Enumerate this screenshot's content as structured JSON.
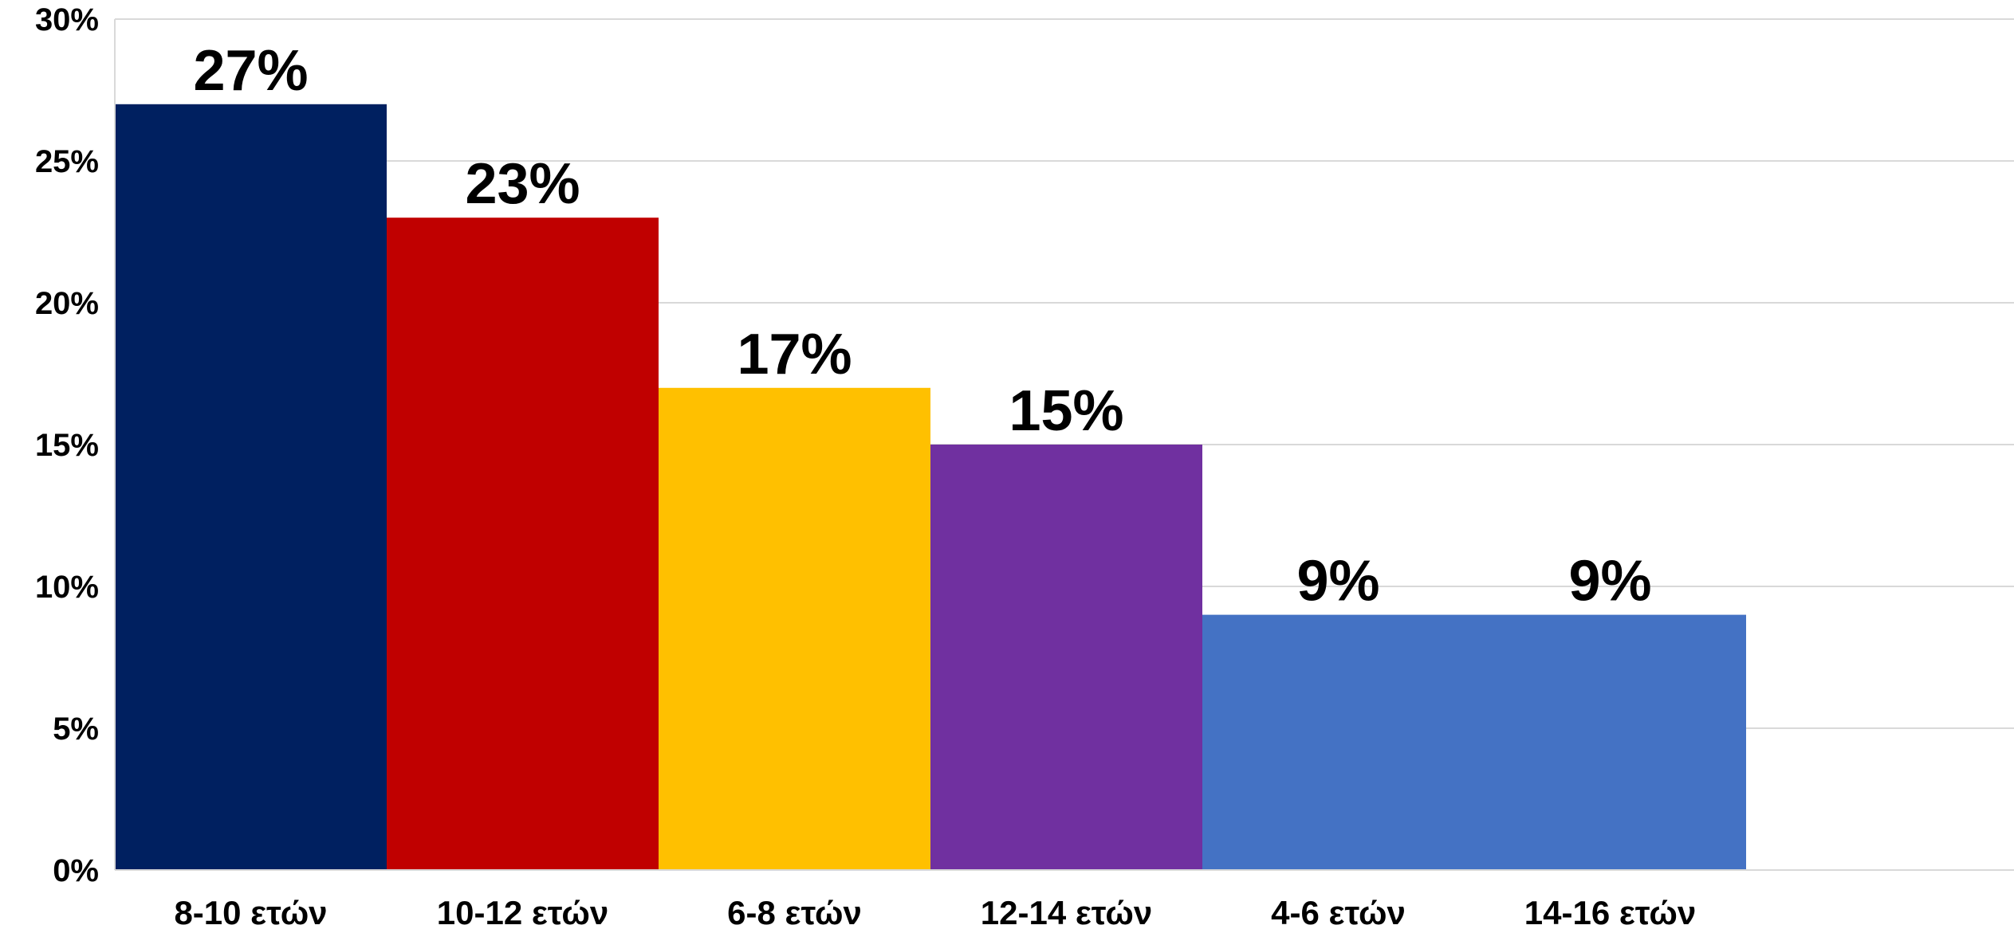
{
  "chart_data": {
    "type": "bar",
    "categories": [
      "8-10 ετών",
      "10-12 ετών",
      "6-8 ετών",
      "12-14 ετών",
      "4-6 ετών",
      "14-16 ετών"
    ],
    "values": [
      27,
      23,
      17,
      15,
      9,
      9
    ],
    "data_labels": [
      "27%",
      "23%",
      "17%",
      "15%",
      "9%",
      "9%"
    ],
    "colors": [
      "#002060",
      "#c00000",
      "#ffc000",
      "#7030a0",
      "#4472c4",
      "#4472c4"
    ],
    "y_ticks": [
      0,
      5,
      10,
      15,
      20,
      25,
      30
    ],
    "y_tick_labels": [
      "0%",
      "5%",
      "10%",
      "15%",
      "20%",
      "25%",
      "30%"
    ],
    "ylim": [
      0,
      30
    ],
    "grid": true,
    "legend": "none"
  }
}
